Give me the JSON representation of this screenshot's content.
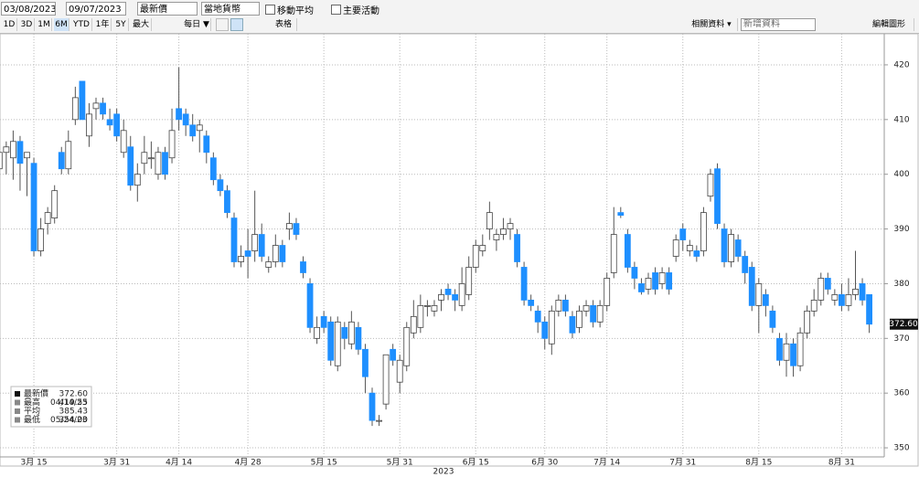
{
  "toolbar": {
    "start_date": "03/08/2023",
    "end_date": "09/07/2023",
    "field": "最新價",
    "currency": "當地貨幣",
    "checkboxes": [
      "移動平均",
      "主要活動"
    ],
    "ranges": [
      "1D",
      "3D",
      "1M",
      "6M",
      "YTD",
      "1年",
      "5Y",
      "最大"
    ],
    "frequency": "每日 ▼",
    "table": "表格",
    "related": "相關資料 ▾",
    "add": "新增資料",
    "edit": "編輯圖形"
  },
  "chart_data": {
    "type": "candlestick",
    "up_color": "#ffffff",
    "down_color": "#1e8fff",
    "grid": true,
    "categories": [
      null,
      null,
      null,
      null,
      null,
      "3月 15",
      null,
      null,
      null,
      null,
      null,
      null,
      null,
      null,
      null,
      null,
      null,
      "3月 31",
      null,
      null,
      null,
      null,
      null,
      null,
      null,
      null,
      "4月 14",
      null,
      null,
      null,
      null,
      null,
      null,
      null,
      null,
      null,
      "4月 28",
      null,
      null,
      null,
      null,
      null,
      null,
      null,
      null,
      null,
      null,
      "5月 15",
      null,
      null,
      null,
      null,
      null,
      null,
      null,
      null,
      null,
      null,
      "5月 31",
      null,
      null,
      null,
      null,
      null,
      null,
      null,
      null,
      null,
      null,
      "6月 15",
      null,
      null,
      null,
      null,
      null,
      null,
      null,
      null,
      null,
      "6月 30",
      null,
      null,
      null,
      null,
      null,
      null,
      null,
      null,
      "7月 14",
      null,
      null,
      null,
      null,
      null,
      null,
      null,
      null,
      null,
      null,
      "7月 31",
      null,
      null,
      null,
      null,
      null,
      null,
      null,
      null,
      null,
      null,
      "8月 15",
      null,
      null,
      null,
      null,
      null,
      null,
      null,
      null,
      null,
      null,
      null,
      "8月 31",
      null,
      null,
      null,
      null
    ],
    "x_group_label": "2023",
    "candles": [
      [
        401,
        405,
        394,
        404
      ],
      [
        404,
        406,
        400,
        405
      ],
      [
        403,
        408,
        399,
        406
      ],
      [
        406,
        407,
        397,
        402
      ],
      [
        403,
        404,
        396,
        404
      ],
      [
        402,
        403,
        385,
        386
      ],
      [
        386,
        392,
        385,
        390
      ],
      [
        391,
        394,
        389,
        393
      ],
      [
        392,
        398,
        391,
        397
      ],
      [
        404,
        405,
        400,
        401
      ],
      [
        401,
        408,
        400,
        406
      ],
      [
        410,
        416,
        409,
        414
      ],
      [
        417,
        417,
        410,
        410
      ],
      [
        407,
        413,
        405,
        411
      ],
      [
        412,
        414,
        410,
        413
      ],
      [
        413,
        414,
        410,
        411
      ],
      [
        410,
        412,
        408,
        409
      ],
      [
        411,
        412,
        406,
        407
      ],
      [
        404,
        410,
        403,
        408
      ],
      [
        405,
        407,
        397,
        398
      ],
      [
        398,
        402,
        395,
        400
      ],
      [
        402,
        407,
        400,
        404
      ],
      [
        403,
        406,
        401,
        403
      ],
      [
        400,
        405,
        399,
        404
      ],
      [
        404,
        405,
        399,
        400
      ],
      [
        403,
        412,
        402,
        408
      ],
      [
        412,
        419.55,
        408,
        410
      ],
      [
        411,
        412,
        407,
        409
      ],
      [
        409,
        411,
        406,
        407
      ],
      [
        408,
        410,
        404,
        409
      ],
      [
        407,
        408,
        402,
        404
      ],
      [
        403,
        404,
        398,
        399
      ],
      [
        399,
        400,
        396,
        397
      ],
      [
        397,
        398,
        392,
        393
      ],
      [
        392,
        393,
        383,
        384
      ],
      [
        384,
        387,
        383,
        385
      ],
      [
        386,
        390,
        381,
        385
      ],
      [
        386,
        397,
        384,
        389
      ],
      [
        389,
        391,
        384,
        385
      ],
      [
        383,
        385,
        382,
        384
      ],
      [
        384,
        389,
        383,
        387
      ],
      [
        387,
        388,
        383,
        384
      ],
      [
        390,
        393,
        388,
        391
      ],
      [
        391,
        392,
        388,
        389
      ],
      [
        384,
        385,
        381,
        382
      ],
      [
        380,
        381,
        371,
        372
      ],
      [
        370,
        374,
        369,
        372
      ],
      [
        374,
        375,
        371,
        372
      ],
      [
        373,
        374,
        365,
        366
      ],
      [
        365,
        374,
        364,
        373
      ],
      [
        372,
        373,
        368,
        370
      ],
      [
        369,
        375,
        368,
        373
      ],
      [
        372,
        373,
        367,
        368
      ],
      [
        368,
        369,
        360,
        363
      ],
      [
        360,
        361,
        354,
        355
      ],
      [
        355,
        356,
        354,
        355
      ],
      [
        358,
        367,
        357,
        367
      ],
      [
        368,
        369,
        365,
        366
      ],
      [
        362,
        367,
        360,
        366
      ],
      [
        365,
        373,
        364,
        372
      ],
      [
        371,
        377,
        370,
        374
      ],
      [
        372,
        378,
        371,
        376
      ],
      [
        376,
        377,
        374,
        376
      ],
      [
        375,
        377,
        374,
        376
      ],
      [
        377,
        379,
        375,
        378
      ],
      [
        379,
        380,
        377,
        378
      ],
      [
        378,
        379,
        375,
        377
      ],
      [
        376,
        383,
        375,
        380
      ],
      [
        378,
        385,
        377,
        383
      ],
      [
        383,
        388,
        382,
        387
      ],
      [
        386,
        389,
        385,
        387
      ],
      [
        390,
        395,
        388,
        393
      ],
      [
        388,
        390,
        386,
        389
      ],
      [
        389,
        392,
        388,
        390
      ],
      [
        390,
        392,
        388,
        391
      ],
      [
        389,
        390,
        383,
        384
      ],
      [
        383,
        384,
        376,
        377
      ],
      [
        377,
        378,
        375,
        376
      ],
      [
        375,
        376,
        371,
        373
      ],
      [
        373,
        374,
        368,
        370
      ],
      [
        369,
        376,
        367,
        375
      ],
      [
        375,
        378,
        374,
        377
      ],
      [
        377,
        378,
        374,
        375
      ],
      [
        374,
        375,
        370,
        371
      ],
      [
        372,
        376,
        371,
        375
      ],
      [
        375,
        377,
        374,
        376
      ],
      [
        376,
        377,
        372,
        373
      ],
      [
        373,
        377,
        372,
        376
      ],
      [
        376,
        382,
        375,
        381
      ],
      [
        382,
        394,
        381,
        389
      ],
      [
        393,
        394,
        392,
        392.5
      ],
      [
        389,
        390,
        382,
        383
      ],
      [
        383,
        384,
        379,
        381
      ],
      [
        380,
        381,
        378,
        378.5
      ],
      [
        379,
        382,
        378,
        381
      ],
      [
        382,
        383,
        378,
        379
      ],
      [
        380,
        383,
        379,
        382
      ],
      [
        382,
        383,
        378,
        379
      ],
      [
        385,
        389,
        384,
        388
      ],
      [
        390,
        391,
        386,
        388
      ],
      [
        386,
        388,
        385,
        387
      ],
      [
        386,
        387,
        384,
        385
      ],
      [
        386,
        394,
        385,
        393
      ],
      [
        396,
        401,
        395,
        400
      ],
      [
        401,
        402,
        390,
        391
      ],
      [
        390,
        391,
        383,
        384
      ],
      [
        384,
        390,
        383,
        389
      ],
      [
        388,
        389,
        384,
        385
      ],
      [
        385,
        386,
        380,
        382
      ],
      [
        383,
        384,
        375,
        376
      ],
      [
        376,
        381,
        371,
        380
      ],
      [
        378,
        379,
        374,
        376
      ],
      [
        375,
        376,
        371,
        372
      ],
      [
        370,
        371,
        365,
        366
      ],
      [
        366,
        371,
        363,
        369
      ],
      [
        369,
        370,
        363,
        365
      ],
      [
        365,
        372,
        364,
        371
      ],
      [
        371,
        376,
        370,
        375
      ],
      [
        375,
        379,
        374,
        377
      ],
      [
        377,
        382,
        376,
        381
      ],
      [
        381,
        382,
        378,
        379
      ],
      [
        377,
        379,
        376,
        378
      ],
      [
        378,
        380,
        375,
        376
      ],
      [
        376,
        381,
        375,
        378
      ],
      [
        378,
        386,
        377,
        379
      ],
      [
        380,
        381,
        376,
        377
      ],
      [
        378,
        378,
        371,
        372.6
      ]
    ],
    "ylim": [
      346.67,
      425.67
    ],
    "yticks": [
      350,
      360,
      370,
      380,
      390,
      400,
      410,
      420
    ],
    "last_value": 372.6,
    "last_value_label": "372.60",
    "legend": [
      {
        "label": "最新價",
        "value": 372.6,
        "value_label": "372.60"
      },
      {
        "label": "最高",
        "date": "04/14/23",
        "value": 419.55
      },
      {
        "label": "平均",
        "value": 385.43
      },
      {
        "label": "最低",
        "date": "05/24/23",
        "value": 354,
        "value_label": "354.00"
      }
    ]
  }
}
